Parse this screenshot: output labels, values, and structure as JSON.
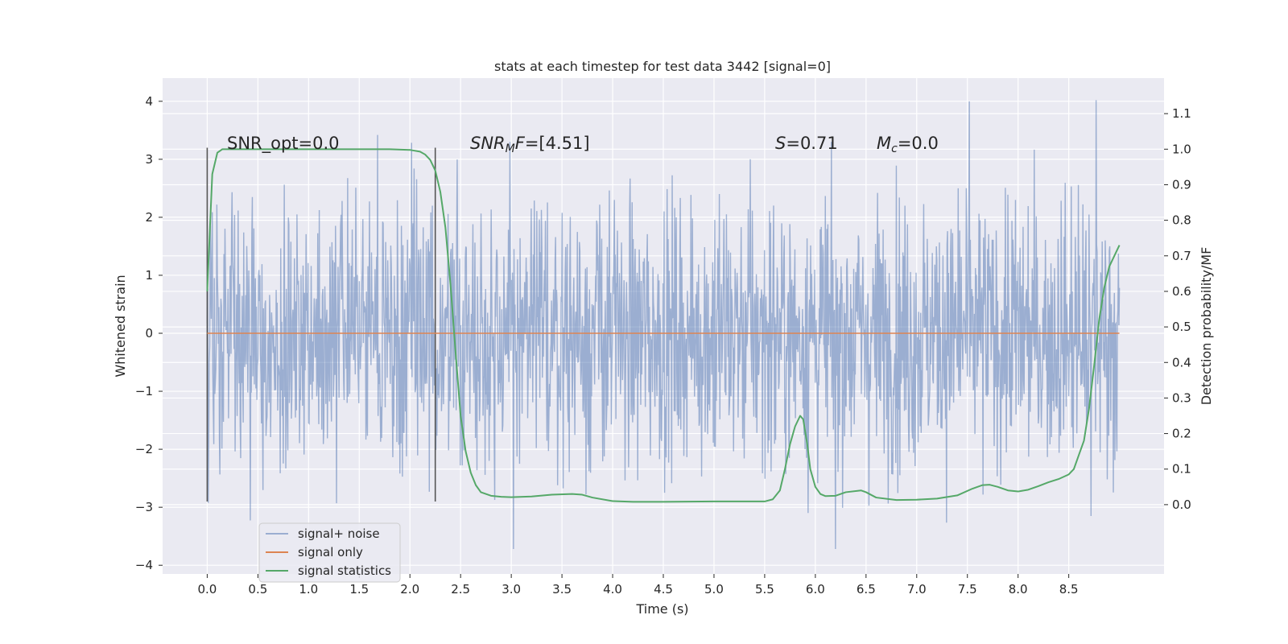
{
  "chart_data": {
    "type": "line",
    "title": "stats at each timestep for test data 3442 [signal=0]",
    "xlabel": "Time (s)",
    "ylabel": "Whitened strain",
    "ylabel_right": "Detection probability/MF",
    "xlim": [
      -0.44,
      9.44
    ],
    "ylim": [
      -4.15,
      4.4
    ],
    "ylim_right": [
      -0.195,
      1.2
    ],
    "x_ticks": [
      0.0,
      0.5,
      1.0,
      1.5,
      2.0,
      2.5,
      3.0,
      3.5,
      4.0,
      4.5,
      5.0,
      5.5,
      6.0,
      6.5,
      7.0,
      7.5,
      8.0,
      8.5
    ],
    "x_tick_labels": [
      "0.0",
      "0.5",
      "1.0",
      "1.5",
      "2.0",
      "2.5",
      "3.0",
      "3.5",
      "4.0",
      "4.5",
      "5.0",
      "5.5",
      "6.0",
      "6.5",
      "7.0",
      "7.5",
      "8.0",
      "8.5"
    ],
    "y_ticks": [
      4,
      3,
      2,
      1,
      0,
      -1,
      -2,
      -3,
      -4
    ],
    "y_tick_labels": [
      "4",
      "3",
      "2",
      "1",
      "0",
      "−1",
      "−2",
      "−3",
      "−4"
    ],
    "y_right_ticks": [
      1.1,
      1.0,
      0.9,
      0.8,
      0.7,
      0.6,
      0.5,
      0.4,
      0.3,
      0.2,
      0.1,
      0.0
    ],
    "y_right_tick_labels": [
      "1.1",
      "1.0",
      "0.9",
      "0.8",
      "0.7",
      "0.6",
      "0.5",
      "0.4",
      "0.3",
      "0.2",
      "0.1",
      "0.0"
    ],
    "annotations": {
      "snr_opt": "SNR_opt=0.0",
      "snr_mf_sym": "SNR",
      "snr_mf_sub": "M",
      "snr_mf_f": "F",
      "snr_mf_val": "=[4.51]",
      "s_sym": "S",
      "s_val": "=0.71",
      "mc_sym": "M",
      "mc_sub": "c",
      "mc_val": "=0.0"
    },
    "vertical_markers": [
      {
        "x": 0.0,
        "ymin": -2.9,
        "ymax": 3.2
      },
      {
        "x": 2.25,
        "ymin": -2.9,
        "ymax": 3.2
      }
    ],
    "noise": {
      "x_start": 0.0,
      "x_end": 9.0,
      "samples": 1800,
      "seed": 3442,
      "typical_amplitude": 1.15,
      "max_abs": 4.0,
      "spikes": [
        {
          "x": 7.52,
          "y": 4.0
        },
        {
          "x": 8.77,
          "y": 4.02
        },
        {
          "x": 1.68,
          "y": 3.42
        },
        {
          "x": 3.02,
          "y": -3.72
        },
        {
          "x": 6.2,
          "y": -3.72
        },
        {
          "x": 8.72,
          "y": -3.15
        }
      ]
    },
    "series": [
      {
        "name": "signal+ noise",
        "color": "#4c72b0",
        "opacity": 0.5,
        "kind": "noise"
      },
      {
        "name": "signal only",
        "color": "#dd8452",
        "kind": "line",
        "x": [
          0.0,
          9.0
        ],
        "y": [
          0.0,
          0.0
        ]
      },
      {
        "name": "signal statistics",
        "color": "#55a868",
        "kind": "line",
        "axis": "right",
        "x": [
          0.0,
          0.05,
          0.1,
          0.15,
          0.2,
          0.3,
          0.5,
          1.0,
          1.5,
          1.8,
          2.0,
          2.1,
          2.15,
          2.2,
          2.25,
          2.3,
          2.35,
          2.4,
          2.45,
          2.5,
          2.55,
          2.6,
          2.65,
          2.7,
          2.8,
          2.9,
          3.0,
          3.2,
          3.4,
          3.6,
          3.7,
          3.8,
          4.0,
          4.2,
          4.5,
          5.0,
          5.3,
          5.5,
          5.58,
          5.65,
          5.7,
          5.75,
          5.8,
          5.85,
          5.88,
          5.92,
          5.95,
          6.0,
          6.05,
          6.1,
          6.2,
          6.3,
          6.45,
          6.5,
          6.6,
          6.8,
          7.0,
          7.2,
          7.4,
          7.55,
          7.65,
          7.72,
          7.8,
          7.9,
          8.0,
          8.1,
          8.2,
          8.3,
          8.4,
          8.5,
          8.55,
          8.6,
          8.65,
          8.7,
          8.75,
          8.8,
          8.85,
          8.9,
          8.95,
          9.0
        ],
        "y": [
          0.6,
          0.93,
          0.99,
          1.0,
          1.0,
          1.0,
          1.0,
          1.0,
          1.0,
          1.0,
          0.998,
          0.993,
          0.985,
          0.97,
          0.94,
          0.88,
          0.78,
          0.62,
          0.43,
          0.25,
          0.15,
          0.09,
          0.055,
          0.035,
          0.025,
          0.022,
          0.021,
          0.023,
          0.028,
          0.03,
          0.028,
          0.02,
          0.01,
          0.008,
          0.008,
          0.009,
          0.009,
          0.009,
          0.015,
          0.04,
          0.1,
          0.17,
          0.22,
          0.25,
          0.24,
          0.17,
          0.1,
          0.05,
          0.03,
          0.024,
          0.025,
          0.035,
          0.04,
          0.035,
          0.02,
          0.013,
          0.014,
          0.017,
          0.026,
          0.045,
          0.055,
          0.056,
          0.05,
          0.04,
          0.037,
          0.042,
          0.052,
          0.063,
          0.072,
          0.085,
          0.1,
          0.14,
          0.18,
          0.27,
          0.39,
          0.52,
          0.61,
          0.67,
          0.7,
          0.73
        ]
      }
    ],
    "legend": {
      "placement": "lower-left",
      "entries": [
        "signal+ noise",
        "signal only",
        "signal statistics"
      ]
    },
    "grid": true
  }
}
